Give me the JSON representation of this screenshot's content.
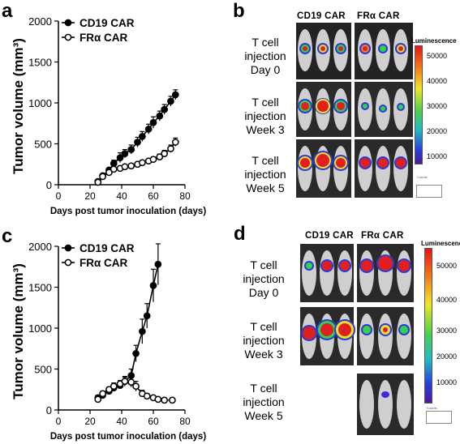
{
  "panels": {
    "a": {
      "letter": "a"
    },
    "b": {
      "letter": "b"
    },
    "c": {
      "letter": "c"
    },
    "d": {
      "letter": "d"
    }
  },
  "chart_data": [
    {
      "type": "line",
      "panel": "a",
      "xlabel": "Days post tumor inoculation (days)",
      "ylabel": "Tumor volume (mm³)",
      "xlim": [
        0,
        80
      ],
      "ylim": [
        0,
        2000
      ],
      "xticks": [
        0,
        20,
        40,
        60,
        80
      ],
      "yticks": [
        0,
        500,
        1000,
        1500,
        2000
      ],
      "legend_position": "top-left",
      "series": [
        {
          "name": "CD19 CAR",
          "marker": "filled-circle",
          "x": [
            25,
            28,
            32,
            35,
            39,
            42,
            46,
            50,
            53,
            57,
            60,
            64,
            67,
            71,
            74
          ],
          "y": [
            40,
            110,
            180,
            260,
            330,
            380,
            430,
            520,
            590,
            680,
            760,
            840,
            920,
            1020,
            1100
          ],
          "err": [
            10,
            15,
            20,
            40,
            60,
            50,
            55,
            60,
            60,
            60,
            70,
            60,
            60,
            60,
            60
          ]
        },
        {
          "name": "FRα CAR",
          "marker": "open-circle",
          "x": [
            25,
            28,
            32,
            35,
            39,
            42,
            46,
            50,
            53,
            57,
            60,
            64,
            67,
            71,
            74
          ],
          "y": [
            30,
            100,
            150,
            190,
            200,
            220,
            230,
            250,
            270,
            290,
            310,
            340,
            380,
            440,
            520
          ],
          "err": [
            10,
            15,
            20,
            25,
            30,
            25,
            25,
            25,
            25,
            25,
            30,
            35,
            40,
            45,
            50
          ]
        }
      ]
    },
    {
      "type": "line",
      "panel": "c",
      "xlabel": "Days post tumor inoculation (days)",
      "ylabel": "Tumor volume (mm³)",
      "xlim": [
        0,
        80
      ],
      "ylim": [
        0,
        2000
      ],
      "xticks": [
        0,
        20,
        40,
        60,
        80
      ],
      "yticks": [
        0,
        500,
        1000,
        1500,
        2000
      ],
      "legend_position": "top-left",
      "series": [
        {
          "name": "CD19 CAR",
          "marker": "filled-circle",
          "x": [
            25,
            28,
            32,
            35,
            39,
            42,
            46,
            49,
            53,
            56,
            60,
            63
          ],
          "y": [
            150,
            180,
            230,
            270,
            300,
            350,
            420,
            690,
            960,
            1150,
            1520,
            1780
          ],
          "err": [
            30,
            30,
            30,
            40,
            40,
            60,
            80,
            100,
            150,
            150,
            200,
            250
          ]
        },
        {
          "name": "FRα CAR",
          "marker": "open-circle",
          "x": [
            25,
            28,
            32,
            35,
            39,
            42,
            46,
            49,
            53,
            56,
            60,
            63,
            67,
            72
          ],
          "y": [
            130,
            200,
            250,
            290,
            320,
            350,
            340,
            290,
            200,
            170,
            150,
            130,
            120,
            120
          ],
          "err": [
            30,
            30,
            30,
            40,
            40,
            50,
            60,
            60,
            40,
            30,
            20,
            20,
            15,
            15
          ]
        }
      ]
    }
  ],
  "imaging": {
    "b": {
      "columns": [
        "CD19 CAR",
        "FRα CAR"
      ],
      "rows": [
        {
          "line1": "T cell",
          "line2": "injection",
          "line3": "Day 0"
        },
        {
          "line1": "T cell",
          "line2": "injection",
          "line3": "Week 3"
        },
        {
          "line1": "T cell",
          "line2": "injection",
          "line3": "Week 5"
        }
      ],
      "scale_title": "Luminescence",
      "scale_ticks": [
        "50000",
        "40000",
        "30000",
        "20000",
        "10000"
      ],
      "counts_label": "Counts"
    },
    "d": {
      "columns": [
        "CD19 CAR",
        "FRα CAR"
      ],
      "rows": [
        {
          "line1": "T cell",
          "line2": "injection",
          "line3": "Day 0"
        },
        {
          "line1": "T cell",
          "line2": "injection",
          "line3": "Week 3"
        },
        {
          "line1": "T cell",
          "line2": "injection",
          "line3": "Week 5"
        }
      ],
      "scale_title": "Luminescence",
      "scale_ticks": [
        "50000",
        "40000",
        "30000",
        "20000",
        "10000"
      ],
      "counts_label": "Counts"
    }
  }
}
